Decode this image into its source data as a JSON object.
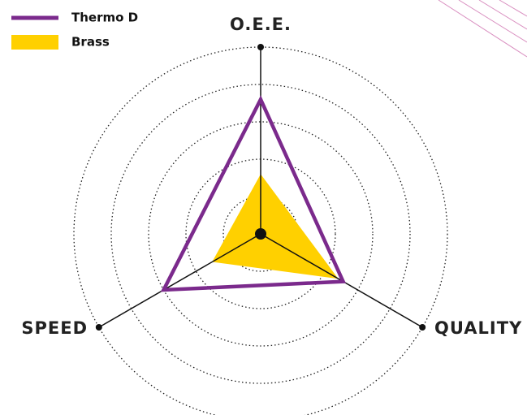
{
  "chart_data": {
    "type": "radar",
    "categories": [
      "O.E.E.",
      "QUALITY",
      "SPEED"
    ],
    "series": [
      {
        "name": "Thermo D",
        "color": "#7b2a8c",
        "values": [
          72,
          51,
          60
        ]
      },
      {
        "name": "Brass",
        "color": "#ffd000",
        "values": [
          32,
          48,
          30
        ]
      }
    ],
    "ylim": [
      0,
      100
    ],
    "yticks": [
      20,
      40,
      60,
      80,
      100
    ],
    "grid": true,
    "legend": "top-left"
  }
}
